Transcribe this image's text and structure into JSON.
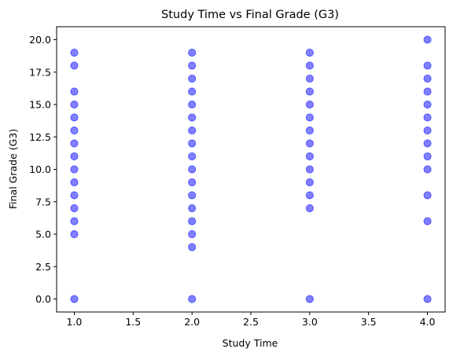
{
  "chart_data": {
    "type": "scatter",
    "title": "Study Time vs Final Grade (G3)",
    "xlabel": "Study Time",
    "ylabel": "Final Grade (G3)",
    "xlim": [
      0.85,
      4.15
    ],
    "ylim": [
      -1.0,
      21.0
    ],
    "x_ticks": [
      "1.0",
      "1.5",
      "2.0",
      "2.5",
      "3.0",
      "3.5",
      "4.0"
    ],
    "y_ticks": [
      "0.0",
      "2.5",
      "5.0",
      "7.5",
      "10.0",
      "12.5",
      "15.0",
      "17.5",
      "20.0"
    ],
    "grid": false,
    "marker_color": "#0000ff",
    "marker_alpha": 0.5,
    "series": [
      {
        "points": [
          {
            "x": 1,
            "y": 0
          },
          {
            "x": 1,
            "y": 5
          },
          {
            "x": 1,
            "y": 6
          },
          {
            "x": 1,
            "y": 7
          },
          {
            "x": 1,
            "y": 8
          },
          {
            "x": 1,
            "y": 9
          },
          {
            "x": 1,
            "y": 10
          },
          {
            "x": 1,
            "y": 11
          },
          {
            "x": 1,
            "y": 12
          },
          {
            "x": 1,
            "y": 13
          },
          {
            "x": 1,
            "y": 14
          },
          {
            "x": 1,
            "y": 15
          },
          {
            "x": 1,
            "y": 16
          },
          {
            "x": 1,
            "y": 18
          },
          {
            "x": 1,
            "y": 19
          },
          {
            "x": 2,
            "y": 0
          },
          {
            "x": 2,
            "y": 4
          },
          {
            "x": 2,
            "y": 5
          },
          {
            "x": 2,
            "y": 6
          },
          {
            "x": 2,
            "y": 7
          },
          {
            "x": 2,
            "y": 8
          },
          {
            "x": 2,
            "y": 9
          },
          {
            "x": 2,
            "y": 10
          },
          {
            "x": 2,
            "y": 11
          },
          {
            "x": 2,
            "y": 12
          },
          {
            "x": 2,
            "y": 13
          },
          {
            "x": 2,
            "y": 14
          },
          {
            "x": 2,
            "y": 15
          },
          {
            "x": 2,
            "y": 16
          },
          {
            "x": 2,
            "y": 17
          },
          {
            "x": 2,
            "y": 18
          },
          {
            "x": 2,
            "y": 19
          },
          {
            "x": 3,
            "y": 0
          },
          {
            "x": 3,
            "y": 7
          },
          {
            "x": 3,
            "y": 8
          },
          {
            "x": 3,
            "y": 9
          },
          {
            "x": 3,
            "y": 10
          },
          {
            "x": 3,
            "y": 11
          },
          {
            "x": 3,
            "y": 12
          },
          {
            "x": 3,
            "y": 13
          },
          {
            "x": 3,
            "y": 14
          },
          {
            "x": 3,
            "y": 15
          },
          {
            "x": 3,
            "y": 16
          },
          {
            "x": 3,
            "y": 17
          },
          {
            "x": 3,
            "y": 18
          },
          {
            "x": 3,
            "y": 19
          },
          {
            "x": 4,
            "y": 0
          },
          {
            "x": 4,
            "y": 6
          },
          {
            "x": 4,
            "y": 8
          },
          {
            "x": 4,
            "y": 10
          },
          {
            "x": 4,
            "y": 11
          },
          {
            "x": 4,
            "y": 12
          },
          {
            "x": 4,
            "y": 13
          },
          {
            "x": 4,
            "y": 14
          },
          {
            "x": 4,
            "y": 15
          },
          {
            "x": 4,
            "y": 16
          },
          {
            "x": 4,
            "y": 17
          },
          {
            "x": 4,
            "y": 18
          },
          {
            "x": 4,
            "y": 20
          }
        ]
      }
    ]
  }
}
